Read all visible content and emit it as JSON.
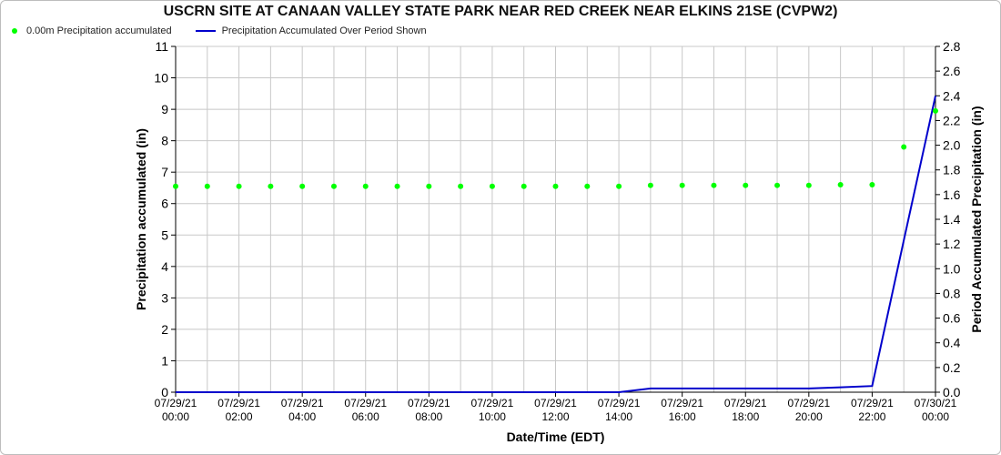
{
  "chart_data": {
    "type": "line",
    "title": "USCRN SITE AT CANAAN VALLEY STATE PARK NEAR RED CREEK NEAR ELKINS 21SE (CVPW2)",
    "xlabel": "Date/Time (EDT)",
    "ylabel_left": "Precipitation accumulated (in)",
    "ylabel_right": "Period Accumulated Precipitation (in)",
    "xlim": [
      0,
      24
    ],
    "ylim_left": [
      0,
      11
    ],
    "ylim_right": [
      0,
      2.8
    ],
    "grid": true,
    "legend_placement": "top-left",
    "x_ticks": [
      {
        "x": 0,
        "date": "07/29/21",
        "time": "00:00"
      },
      {
        "x": 2,
        "date": "07/29/21",
        "time": "02:00"
      },
      {
        "x": 4,
        "date": "07/29/21",
        "time": "04:00"
      },
      {
        "x": 6,
        "date": "07/29/21",
        "time": "06:00"
      },
      {
        "x": 8,
        "date": "07/29/21",
        "time": "08:00"
      },
      {
        "x": 10,
        "date": "07/29/21",
        "time": "10:00"
      },
      {
        "x": 12,
        "date": "07/29/21",
        "time": "12:00"
      },
      {
        "x": 14,
        "date": "07/29/21",
        "time": "14:00"
      },
      {
        "x": 16,
        "date": "07/29/21",
        "time": "16:00"
      },
      {
        "x": 18,
        "date": "07/29/21",
        "time": "18:00"
      },
      {
        "x": 20,
        "date": "07/29/21",
        "time": "20:00"
      },
      {
        "x": 22,
        "date": "07/29/21",
        "time": "22:00"
      },
      {
        "x": 24,
        "date": "07/30/21",
        "time": "00:00"
      }
    ],
    "y_ticks_left": [
      "0",
      "1",
      "2",
      "3",
      "4",
      "5",
      "6",
      "7",
      "8",
      "9",
      "10",
      "11"
    ],
    "y_ticks_right": [
      "0.0",
      "0.2",
      "0.4",
      "0.6",
      "0.8",
      "1.0",
      "1.2",
      "1.4",
      "1.6",
      "1.8",
      "2.0",
      "2.2",
      "2.4",
      "2.6",
      "2.8"
    ],
    "series": [
      {
        "name": "0.00m Precipitation accumulated",
        "axis": "left",
        "style": "scatter",
        "color": "#00ff00",
        "x": [
          0,
          1,
          2,
          3,
          4,
          5,
          6,
          7,
          8,
          9,
          10,
          11,
          12,
          13,
          14,
          15,
          16,
          17,
          18,
          19,
          20,
          21,
          22,
          23,
          24
        ],
        "y": [
          6.55,
          6.55,
          6.55,
          6.55,
          6.55,
          6.55,
          6.55,
          6.55,
          6.55,
          6.55,
          6.55,
          6.55,
          6.55,
          6.55,
          6.55,
          6.58,
          6.58,
          6.58,
          6.58,
          6.58,
          6.58,
          6.6,
          6.6,
          7.8,
          8.95
        ]
      },
      {
        "name": "Precipitation Accumulated Over Period Shown",
        "axis": "right",
        "style": "line",
        "color": "#0000cc",
        "x": [
          0,
          1,
          2,
          3,
          4,
          5,
          6,
          7,
          8,
          9,
          10,
          11,
          12,
          13,
          14,
          15,
          16,
          17,
          18,
          19,
          20,
          21,
          22,
          23,
          24
        ],
        "y": [
          0,
          0,
          0,
          0,
          0,
          0,
          0,
          0,
          0,
          0,
          0,
          0,
          0,
          0,
          0,
          0.03,
          0.03,
          0.03,
          0.03,
          0.03,
          0.03,
          0.04,
          0.05,
          1.23,
          2.4
        ]
      }
    ]
  }
}
